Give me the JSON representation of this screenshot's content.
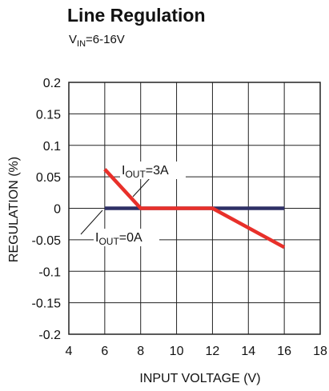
{
  "colors": {
    "series_3a": "#e8302a",
    "series_0a": "#2e3066",
    "grid": "#222222"
  },
  "chart_data": {
    "type": "line",
    "title": "Line Regulation",
    "subtitle": {
      "main": "V",
      "sub": "IN",
      "rest": "=6-16V"
    },
    "xlabel": "INPUT VOLTAGE (V)",
    "ylabel": "REGULATION (%)",
    "xlim": [
      4,
      18
    ],
    "ylim": [
      -0.2,
      0.2
    ],
    "xticks": [
      "4",
      "6",
      "8",
      "10",
      "12",
      "14",
      "16",
      "18"
    ],
    "yticks": [
      "0.2",
      "0.15",
      "0.1",
      "0.05",
      "0",
      "-0.05",
      "-0.1",
      "-0.15",
      "-0.2"
    ],
    "grid": true,
    "series": [
      {
        "label": {
          "main": "I",
          "sub": "OUT",
          "rest": "=3A"
        },
        "x": [
          6,
          8,
          12,
          16
        ],
        "y": [
          0.062,
          0.0,
          0.0,
          -0.062
        ]
      },
      {
        "label": {
          "main": "I",
          "sub": "OUT",
          "rest": "=0A"
        },
        "x": [
          6,
          16
        ],
        "y": [
          0.0,
          0.0
        ]
      }
    ]
  }
}
